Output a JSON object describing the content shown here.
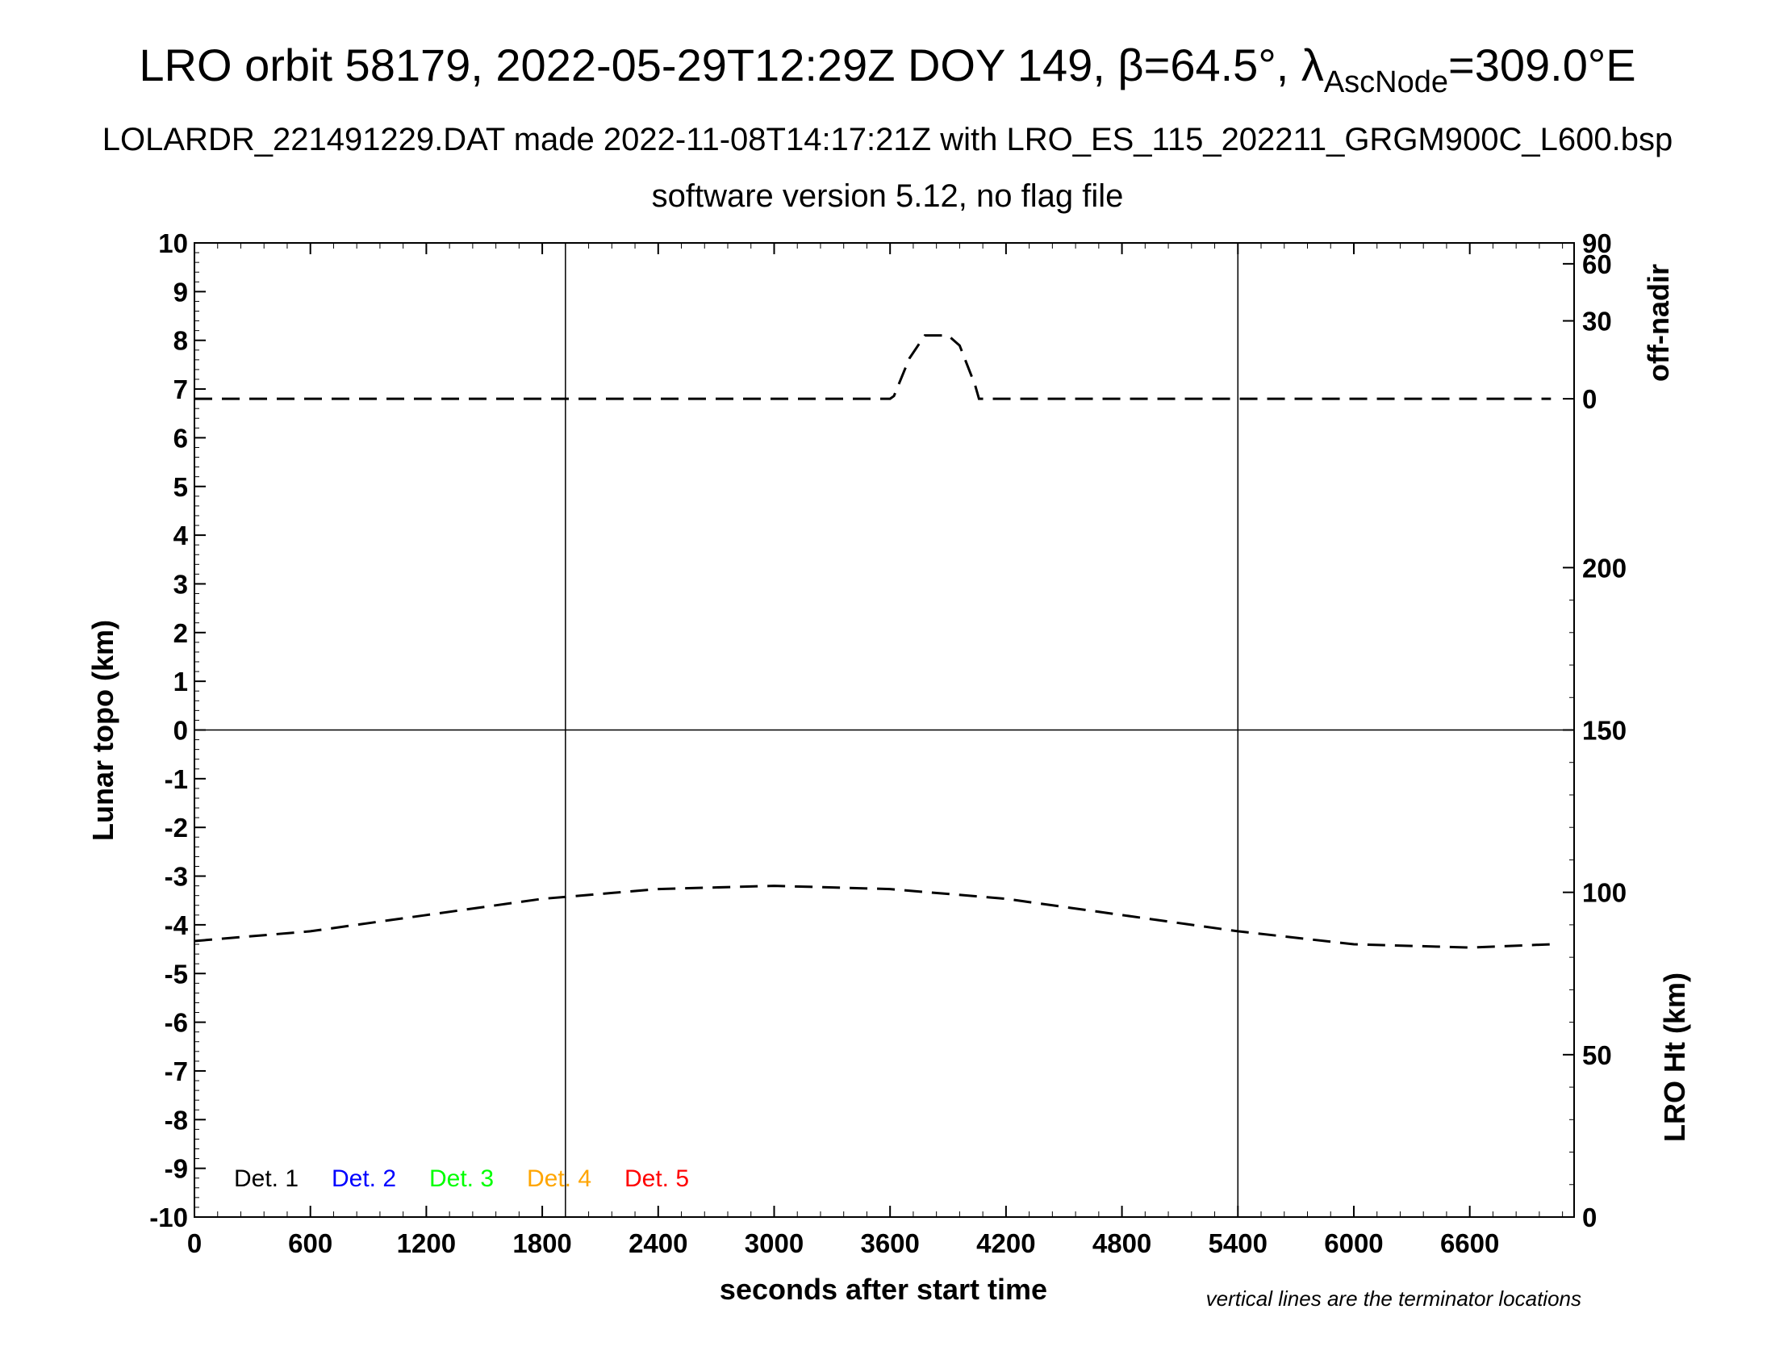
{
  "chart_data": {
    "type": "line",
    "title": "LRO orbit 58179, 2022-05-29T12:29Z DOY 149, β=64.5°, λ",
    "title_subscript": "AscNode",
    "title_suffix": "=309.0°E",
    "subtitle_line1": "LOLARDR_221491229.DAT made 2022-11-08T14:17:21Z with LRO_ES_115_202211_GRGM900C_L600.bsp",
    "subtitle_line2": "software version 5.12, no flag file",
    "xlabel": "seconds after start time",
    "ylabel_left": "Lunar topo (km)",
    "ylabel_right_top": "off-nadir",
    "ylabel_right_bottom": "LRO Ht (km)",
    "note": "vertical lines are the terminator locations",
    "xlim": [
      0,
      7140
    ],
    "ylim_left": [
      -10,
      10
    ],
    "x_ticks": [
      0,
      600,
      1200,
      1800,
      2400,
      3000,
      3600,
      4200,
      4800,
      5400,
      6000,
      6600
    ],
    "y_ticks_left": [
      10,
      9,
      8,
      7,
      6,
      5,
      4,
      3,
      2,
      1,
      0,
      -1,
      -2,
      -3,
      -4,
      -5,
      -6,
      -7,
      -8,
      -9,
      -10
    ],
    "right_top_axis": {
      "ticks": [
        90,
        60,
        30,
        0
      ],
      "scale": "cosine",
      "range": [
        0,
        90
      ]
    },
    "right_bottom_axis": {
      "ticks": [
        200,
        150,
        100,
        50,
        0
      ],
      "range": [
        0,
        300
      ]
    },
    "terminator_lines_x": [
      1920,
      5400
    ],
    "grid": false,
    "legend_position": "bottom-left",
    "legend": [
      {
        "name": "Det. 1",
        "color": "#000000"
      },
      {
        "name": "Det. 2",
        "color": "#0000ff"
      },
      {
        "name": "Det. 3",
        "color": "#00ff00"
      },
      {
        "name": "Det. 4",
        "color": "#ffa500"
      },
      {
        "name": "Det. 5",
        "color": "#ff0000"
      }
    ],
    "series": [
      {
        "axis": "right_top",
        "style": "dashed",
        "color": "#000000",
        "x": [
          0,
          600,
          1200,
          1800,
          2400,
          3000,
          3600,
          3620,
          3700,
          3780,
          3900,
          3960,
          4040,
          4060,
          4080,
          4200,
          4800,
          5400,
          6000,
          6600,
          7020
        ],
        "y": [
          0,
          0,
          0,
          0,
          0,
          0,
          0,
          1,
          15,
          24,
          24,
          20,
          5,
          0,
          0,
          0,
          0,
          0,
          0,
          0,
          0
        ]
      },
      {
        "axis": "right_bottom",
        "style": "dashed",
        "color": "#000000",
        "x": [
          0,
          600,
          1200,
          1800,
          2400,
          3000,
          3600,
          4200,
          4800,
          5400,
          6000,
          6600,
          7020
        ],
        "y": [
          85,
          88,
          93,
          98,
          101,
          102,
          101,
          98,
          93,
          88,
          84,
          83,
          84
        ]
      }
    ]
  }
}
